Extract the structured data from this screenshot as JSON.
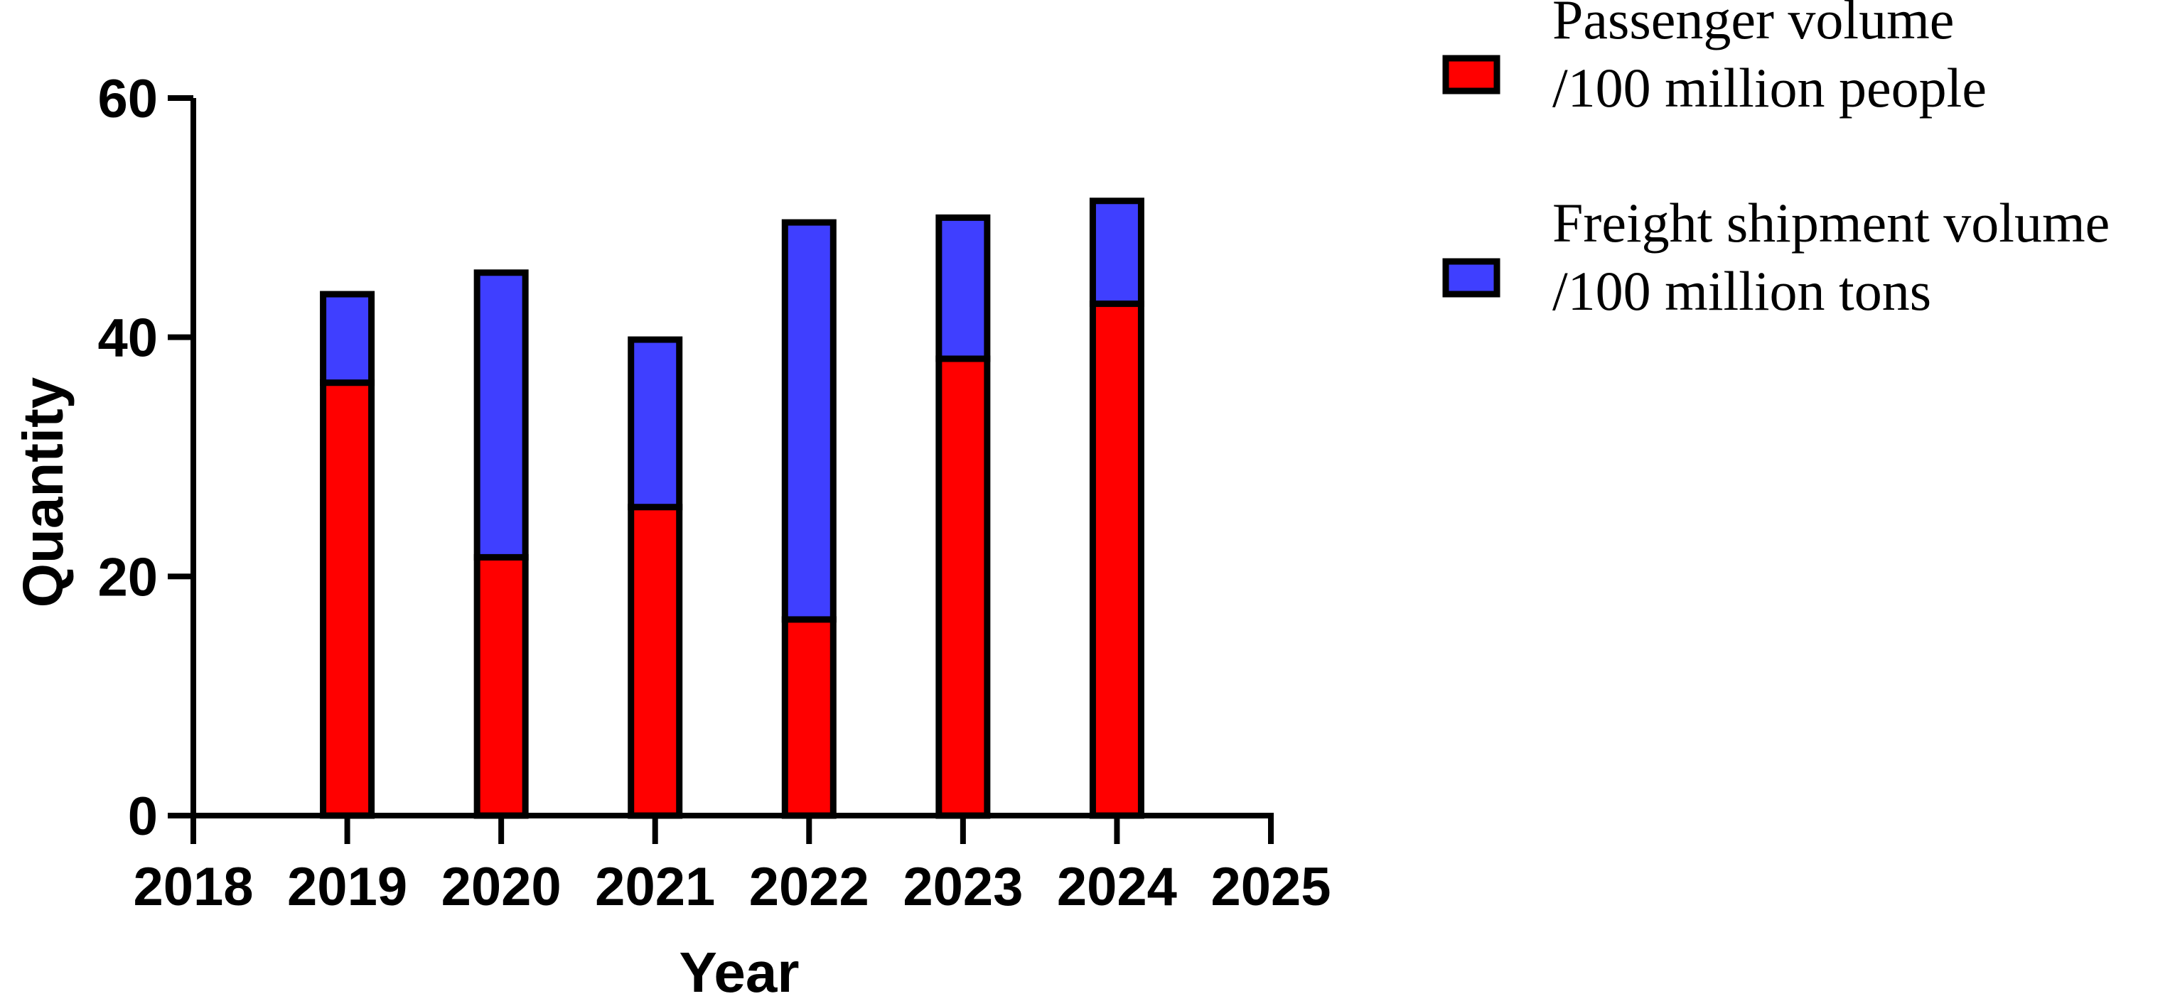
{
  "chart_data": {
    "type": "bar",
    "stacked": true,
    "categories": [
      "2019",
      "2020",
      "2021",
      "2022",
      "2023",
      "2024"
    ],
    "x_ticks": [
      "2018",
      "2019",
      "2020",
      "2021",
      "2022",
      "2023",
      "2024",
      "2025"
    ],
    "series": [
      {
        "name": "Passenger volume /100 million people",
        "name_lines": [
          "Passenger volume",
          "/100 million people"
        ],
        "color": "#ff0000",
        "values": [
          36.2,
          21.6,
          25.8,
          16.4,
          38.2,
          42.8
        ]
      },
      {
        "name": "Freight shipment volume /100 million tons",
        "name_lines": [
          "Freight shipment volume",
          "/100 million tons"
        ],
        "color": "#3f3fff",
        "values": [
          7.4,
          23.8,
          14.0,
          33.2,
          11.8,
          8.6
        ]
      }
    ],
    "xlabel": "Year",
    "ylabel": "Quantity",
    "ylim": [
      0,
      60
    ],
    "yticks": [
      "0",
      "20",
      "40",
      "60"
    ],
    "grid": false,
    "legend_position": "top-right"
  }
}
